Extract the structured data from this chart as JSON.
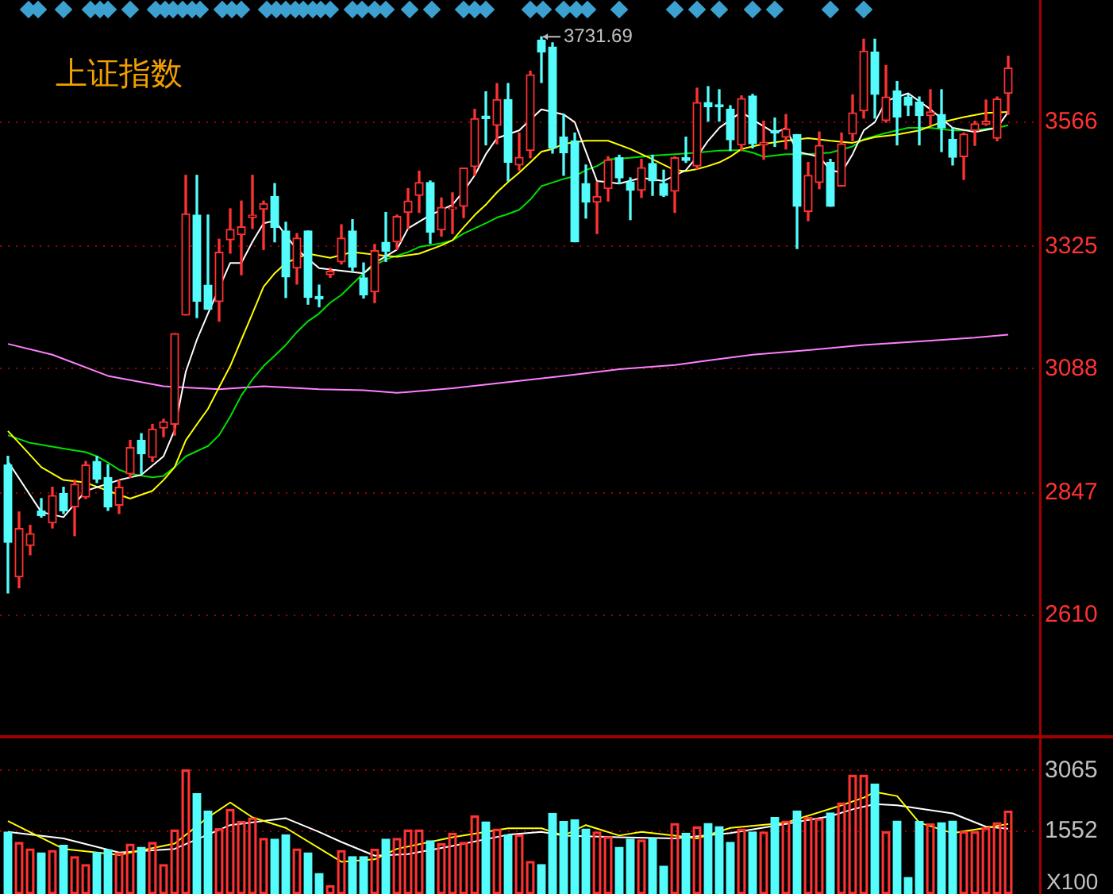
{
  "chart_data": [
    {
      "type": "candlestick",
      "title": "上证指数",
      "categories": [
        null,
        null,
        null,
        null,
        null,
        null,
        null,
        null,
        null,
        null,
        null,
        null,
        null,
        null,
        null,
        null,
        null,
        null,
        null,
        null,
        null,
        null,
        null,
        null,
        null,
        null,
        null,
        null,
        null,
        null,
        null,
        null,
        null,
        null,
        null,
        null,
        null,
        null,
        null,
        null,
        null,
        null,
        null,
        null,
        null,
        null,
        null,
        null,
        null,
        null,
        null,
        null,
        null,
        null,
        null,
        null,
        null,
        null,
        null,
        null,
        null,
        null,
        null,
        null,
        null,
        null,
        null,
        null,
        null,
        null,
        null,
        null,
        null,
        null,
        null,
        null,
        null,
        null,
        null,
        null,
        null,
        null,
        null,
        null,
        null,
        null,
        null,
        null,
        null,
        null,
        null
      ],
      "ohlc": [
        [
          2901,
          2918,
          2653,
          2751
        ],
        [
          2684,
          2810,
          2663,
          2778
        ],
        [
          2745,
          2784,
          2727,
          2768
        ],
        [
          2812,
          2836,
          2800,
          2803
        ],
        [
          2789,
          2858,
          2779,
          2842
        ],
        [
          2846,
          2858,
          2807,
          2812
        ],
        [
          2820,
          2872,
          2764,
          2864
        ],
        [
          2839,
          2908,
          2836,
          2901
        ],
        [
          2908,
          2918,
          2867,
          2874
        ],
        [
          2877,
          2902,
          2813,
          2820
        ],
        [
          2823,
          2872,
          2807,
          2858
        ],
        [
          2884,
          2949,
          2877,
          2935
        ],
        [
          2949,
          2962,
          2884,
          2923
        ],
        [
          2916,
          2980,
          2908,
          2971
        ],
        [
          2973,
          2990,
          2956,
          2985
        ],
        [
          2980,
          3156,
          2959,
          3156
        ],
        [
          3192,
          3463,
          3192,
          3388
        ],
        [
          3386,
          3463,
          3187,
          3219
        ],
        [
          3250,
          3386,
          3203,
          3203
        ],
        [
          3218,
          3339,
          3180,
          3314
        ],
        [
          3338,
          3398,
          3312,
          3358
        ],
        [
          3348,
          3413,
          3270,
          3363
        ],
        [
          3381,
          3463,
          3360,
          3386
        ],
        [
          3397,
          3413,
          3319,
          3408
        ],
        [
          3422,
          3447,
          3334,
          3362
        ],
        [
          3355,
          3372,
          3226,
          3266
        ],
        [
          3283,
          3350,
          3252,
          3341
        ],
        [
          3355,
          3355,
          3213,
          3226
        ],
        [
          3228,
          3250,
          3208,
          3223
        ],
        [
          3270,
          3283,
          3265,
          3277
        ],
        [
          3295,
          3367,
          3291,
          3341
        ],
        [
          3355,
          3377,
          3278,
          3285
        ],
        [
          3264,
          3293,
          3225,
          3231
        ],
        [
          3237,
          3329,
          3216,
          3317
        ],
        [
          3333,
          3391,
          3296,
          3316
        ],
        [
          3334,
          3386,
          3319,
          3383
        ],
        [
          3391,
          3437,
          3360,
          3413
        ],
        [
          3424,
          3471,
          3391,
          3449
        ],
        [
          3449,
          3452,
          3331,
          3353
        ],
        [
          3357,
          3419,
          3345,
          3401
        ],
        [
          3398,
          3429,
          3350,
          3401
        ],
        [
          3403,
          3477,
          3381,
          3477
        ],
        [
          3480,
          3591,
          3463,
          3573
        ],
        [
          3578,
          3625,
          3522,
          3573
        ],
        [
          3560,
          3641,
          3524,
          3610
        ],
        [
          3610,
          3641,
          3452,
          3488
        ],
        [
          3483,
          3545,
          3473,
          3498
        ],
        [
          3511,
          3665,
          3497,
          3658
        ],
        [
          3725,
          3731.69,
          3643,
          3702
        ],
        [
          3712,
          3720,
          3506,
          3516
        ],
        [
          3537,
          3581,
          3463,
          3507
        ],
        [
          3530,
          3545,
          3334,
          3334
        ],
        [
          3447,
          3483,
          3380,
          3411
        ],
        [
          3411,
          3450,
          3350,
          3422
        ],
        [
          3437,
          3499,
          3413,
          3493
        ],
        [
          3497,
          3502,
          3447,
          3458
        ],
        [
          3450,
          3458,
          3377,
          3434
        ],
        [
          3434,
          3494,
          3420,
          3478
        ],
        [
          3486,
          3502,
          3424,
          3452
        ],
        [
          3447,
          3473,
          3422,
          3424
        ],
        [
          3432,
          3499,
          3391,
          3497
        ],
        [
          3497,
          3537,
          3488,
          3492
        ],
        [
          3481,
          3632,
          3475,
          3604
        ],
        [
          3604,
          3635,
          3568,
          3596
        ],
        [
          3600,
          3629,
          3568,
          3596
        ],
        [
          3591,
          3598,
          3511,
          3532
        ],
        [
          3522,
          3617,
          3511,
          3612
        ],
        [
          3617,
          3620,
          3516,
          3524
        ],
        [
          3522,
          3568,
          3494,
          3527
        ],
        [
          3550,
          3574,
          3519,
          3545
        ],
        [
          3537,
          3581,
          3514,
          3553
        ],
        [
          3542,
          3542,
          3321,
          3403
        ],
        [
          3393,
          3488,
          3375,
          3463
        ],
        [
          3449,
          3547,
          3437,
          3521
        ],
        [
          3488,
          3494,
          3403,
          3403
        ],
        [
          3442,
          3545,
          3442,
          3524
        ],
        [
          3543,
          3619,
          3530,
          3584
        ],
        [
          3588,
          3727,
          3574,
          3704
        ],
        [
          3702,
          3727,
          3574,
          3620
        ],
        [
          3569,
          3676,
          3566,
          3615
        ],
        [
          3627,
          3645,
          3522,
          3576
        ],
        [
          3615,
          3619,
          3579,
          3599
        ],
        [
          3605,
          3615,
          3522,
          3579
        ],
        [
          3579,
          3629,
          3560,
          3586
        ],
        [
          3581,
          3629,
          3509,
          3555
        ],
        [
          3533,
          3555,
          3483,
          3498
        ],
        [
          3499,
          3545,
          3455,
          3543
        ],
        [
          3550,
          3568,
          3521,
          3563
        ],
        [
          3562,
          3609,
          3560,
          3568
        ],
        [
          3535,
          3615,
          3530,
          3611
        ],
        [
          3622,
          3694,
          3581,
          3671
        ]
      ],
      "colors": [
        "#54fcfc",
        "#ff3232",
        "#ff3232",
        "#54fcfc",
        "#ff3232",
        "#54fcfc",
        "#ff3232",
        "#ff3232",
        "#54fcfc",
        "#54fcfc",
        "#ff3232",
        "#ff3232",
        "#54fcfc",
        "#ff3232",
        "#ff3232",
        "#ff3232",
        "#ff3232",
        "#54fcfc",
        "#54fcfc",
        "#ff3232",
        "#ff3232",
        "#ff3232",
        "#ff3232",
        "#ff3232",
        "#54fcfc",
        "#54fcfc",
        "#ff3232",
        "#54fcfc",
        "#54fcfc",
        "#ff3232",
        "#ff3232",
        "#54fcfc",
        "#54fcfc",
        "#ff3232",
        "#54fcfc",
        "#ff3232",
        "#ff3232",
        "#ff3232",
        "#54fcfc",
        "#ff3232",
        "#ff3232",
        "#ff3232",
        "#ff3232",
        "#54fcfc",
        "#ff3232",
        "#54fcfc",
        "#ff3232",
        "#ff3232",
        "#54fcfc",
        "#54fcfc",
        "#54fcfc",
        "#54fcfc",
        "#54fcfc",
        "#ff3232",
        "#ff3232",
        "#54fcfc",
        "#54fcfc",
        "#ff3232",
        "#54fcfc",
        "#54fcfc",
        "#ff3232",
        "#54fcfc",
        "#ff3232",
        "#54fcfc",
        "#54fcfc",
        "#54fcfc",
        "#ff3232",
        "#54fcfc",
        "#ff3232",
        "#54fcfc",
        "#ff3232",
        "#54fcfc",
        "#ff3232",
        "#ff3232",
        "#54fcfc",
        "#ff3232",
        "#ff3232",
        "#ff3232",
        "#54fcfc",
        "#ff3232",
        "#54fcfc",
        "#54fcfc",
        "#54fcfc",
        "#ff3232",
        "#54fcfc",
        "#54fcfc",
        "#ff3232",
        "#ff3232",
        "#ff3232",
        "#ff3232",
        "#ff3232"
      ],
      "series": [
        {
          "type": "line",
          "color": "#ffffff",
          "values": [
            2908,
            null,
            null,
            2810,
            null,
            2800,
            null,
            2851,
            null,
            null,
            2872,
            null,
            2882,
            null,
            2918,
            2969,
            3082,
            3144,
            3195,
            null,
            3293,
            3293,
            3334,
            3370,
            3375,
            null,
            3319,
            null,
            3283,
            null,
            3278,
            null,
            3273,
            3293,
            null,
            3319,
            3360,
            null,
            3386,
            null,
            3406,
            3432,
            3463,
            3504,
            3535,
            null,
            3550,
            3571,
            3591,
            null,
            3581,
            3566,
            3509,
            3452,
            null,
            3447,
            null,
            3458,
            null,
            3452,
            null,
            3473,
            3499,
            3530,
            3555,
            null,
            3586,
            3571,
            null,
            3545,
            3555,
            3509,
            null,
            3499,
            3473,
            3468,
            3504,
            3550,
            3566,
            3607,
            null,
            3622,
            null,
            3591,
            null,
            3555,
            null,
            3547,
            null,
            3555,
            3586
          ]
        },
        {
          "type": "line",
          "color": "#ffff00",
          "values": [
            2967,
            2944,
            null,
            2897,
            null,
            2872,
            null,
            2867,
            null,
            2851,
            null,
            2836,
            null,
            2851,
            2872,
            2897,
            2949,
            2980,
            3010,
            3052,
            3093,
            3144,
            3195,
            3247,
            3273,
            3293,
            null,
            3311,
            null,
            3303,
            null,
            3314,
            null,
            3309,
            null,
            3305,
            null,
            3311,
            null,
            3327,
            3337,
            3362,
            3386,
            3406,
            3430,
            3450,
            3468,
            3488,
            3509,
            3514,
            3524,
            null,
            3530,
            null,
            3530,
            null,
            3514,
            null,
            3494,
            null,
            3473,
            3471,
            3475,
            3481,
            3488,
            3499,
            3514,
            null,
            3524,
            null,
            3530,
            null,
            3535,
            null,
            3530,
            null,
            3526,
            null,
            3537,
            null,
            3542,
            null,
            3550,
            null,
            3566,
            null,
            3576,
            null,
            3584,
            null,
            3586
          ]
        },
        {
          "type": "line",
          "color": "#00e000",
          "values": [
            2959,
            null,
            2944,
            null,
            null,
            2933,
            null,
            2926,
            2918,
            2906,
            2892,
            2884,
            null,
            2877,
            2880,
            2897,
            2918,
            2928,
            2938,
            2959,
            2995,
            3036,
            3067,
            3093,
            3113,
            3134,
            3159,
            3180,
            3195,
            3216,
            3231,
            3252,
            3273,
            3288,
            3300,
            3307,
            3314,
            3324,
            null,
            3331,
            3337,
            3350,
            3360,
            3370,
            3381,
            3388,
            3396,
            3416,
            3442,
            3449,
            3456,
            3461,
            3473,
            3481,
            3494,
            null,
            3497,
            null,
            3501,
            null,
            3504,
            null,
            3507,
            null,
            3511,
            null,
            3512,
            3507,
            3499,
            null,
            3504,
            null,
            3504,
            null,
            3507,
            null,
            3519,
            3533,
            null,
            3545,
            3550,
            3555,
            null,
            3555,
            null,
            3550,
            null,
            3550,
            3553,
            3555,
            3560
          ]
        },
        {
          "type": "line",
          "color": "#ff80ff",
          "values": [
            3136,
            null,
            null,
            null,
            3115,
            null,
            null,
            null,
            null,
            3074,
            null,
            null,
            null,
            null,
            3054,
            null,
            null,
            null,
            null,
            3048,
            null,
            null,
            null,
            3054,
            null,
            null,
            null,
            null,
            3048,
            null,
            null,
            null,
            3046,
            null,
            null,
            3041,
            null,
            null,
            null,
            null,
            3050,
            null,
            null,
            null,
            null,
            3062,
            null,
            null,
            null,
            null,
            3074,
            null,
            null,
            null,
            null,
            3087,
            null,
            null,
            null,
            null,
            3095,
            null,
            null,
            3104,
            null,
            null,
            null,
            3115,
            null,
            null,
            null,
            null,
            3124,
            null,
            null,
            null,
            null,
            3134,
            null,
            null,
            null,
            null,
            3141,
            null,
            null,
            null,
            null,
            3148,
            null,
            null,
            3154
          ]
        }
      ],
      "ylim": [
        2374,
        3803
      ],
      "yticks": [
        2610,
        2847,
        3088,
        3325,
        3566
      ],
      "grid": "y",
      "tick_labels": "y",
      "annotations": [
        "3731.69"
      ]
    },
    {
      "type": "bar",
      "ylabel": "X100",
      "categories": [
        null,
        null,
        null,
        null,
        null,
        null,
        null,
        null,
        null,
        null,
        null,
        null,
        null,
        null,
        null,
        null,
        null,
        null,
        null,
        null,
        null,
        null,
        null,
        null,
        null,
        null,
        null,
        null,
        null,
        null,
        null,
        null,
        null,
        null,
        null,
        null,
        null,
        null,
        null,
        null,
        null,
        null,
        null,
        null,
        null,
        null,
        null,
        null,
        null,
        null,
        null,
        null,
        null,
        null,
        null,
        null,
        null,
        null,
        null,
        null,
        null,
        null,
        null,
        null,
        null,
        null,
        null,
        null,
        null,
        null,
        null,
        null,
        null,
        null,
        null,
        null,
        null,
        null,
        null,
        null,
        null,
        null,
        null,
        null,
        null,
        null,
        null,
        null,
        null,
        null,
        null
      ],
      "series": [
        {
          "type": "bar",
          "values": [
            1540,
            1280,
            1120,
            1020,
            1080,
            1210,
            930,
            730,
            1030,
            1100,
            1020,
            1240,
            1160,
            1280,
            730,
            1590,
            3080,
            2490,
            2060,
            1620,
            2100,
            1800,
            1890,
            1380,
            1360,
            1470,
            1120,
            1020,
            510,
            210,
            1080,
            930,
            930,
            1110,
            1360,
            1380,
            1590,
            1590,
            1320,
            1250,
            1510,
            1280,
            1940,
            1790,
            1610,
            1470,
            1470,
            810,
            730,
            2000,
            1800,
            1840,
            1610,
            1540,
            1420,
            1160,
            1360,
            1340,
            1380,
            690,
            1750,
            1510,
            1670,
            1750,
            1670,
            1280,
            1610,
            1540,
            1540,
            1900,
            1810,
            2060,
            1900,
            1870,
            2010,
            2260,
            2950,
            2950,
            2730,
            1550,
            1810,
            410,
            1800,
            1740,
            1770,
            1810,
            1550,
            1550,
            1640,
            1770,
            2060
          ],
          "colors": [
            "#54fcfc",
            "#ff3232",
            "#ff3232",
            "#54fcfc",
            "#ff3232",
            "#54fcfc",
            "#ff3232",
            "#ff3232",
            "#54fcfc",
            "#54fcfc",
            "#ff3232",
            "#ff3232",
            "#54fcfc",
            "#ff3232",
            "#ff3232",
            "#ff3232",
            "#ff3232",
            "#54fcfc",
            "#54fcfc",
            "#ff3232",
            "#ff3232",
            "#ff3232",
            "#ff3232",
            "#ff3232",
            "#54fcfc",
            "#54fcfc",
            "#ff3232",
            "#54fcfc",
            "#54fcfc",
            "#ff3232",
            "#ff3232",
            "#54fcfc",
            "#54fcfc",
            "#ff3232",
            "#54fcfc",
            "#ff3232",
            "#ff3232",
            "#ff3232",
            "#54fcfc",
            "#ff3232",
            "#ff3232",
            "#ff3232",
            "#ff3232",
            "#54fcfc",
            "#ff3232",
            "#54fcfc",
            "#ff3232",
            "#ff3232",
            "#54fcfc",
            "#54fcfc",
            "#54fcfc",
            "#54fcfc",
            "#54fcfc",
            "#ff3232",
            "#ff3232",
            "#54fcfc",
            "#54fcfc",
            "#ff3232",
            "#54fcfc",
            "#54fcfc",
            "#ff3232",
            "#54fcfc",
            "#ff3232",
            "#54fcfc",
            "#54fcfc",
            "#54fcfc",
            "#ff3232",
            "#54fcfc",
            "#ff3232",
            "#54fcfc",
            "#ff3232",
            "#54fcfc",
            "#ff3232",
            "#ff3232",
            "#54fcfc",
            "#ff3232",
            "#ff3232",
            "#ff3232",
            "#54fcfc",
            "#ff3232",
            "#54fcfc",
            "#54fcfc",
            "#54fcfc",
            "#ff3232",
            "#54fcfc",
            "#54fcfc",
            "#ff3232",
            "#ff3232",
            "#ff3232",
            "#ff3232",
            "#ff3232"
          ]
        },
        {
          "type": "line",
          "color": "#ffff00",
          "values": [
            1810,
            null,
            null,
            null,
            null,
            1120,
            null,
            null,
            null,
            null,
            970,
            null,
            null,
            null,
            null,
            1250,
            null,
            null,
            1900,
            null,
            2270,
            null,
            1900,
            null,
            null,
            1640,
            null,
            null,
            null,
            null,
            800,
            null,
            null,
            860,
            null,
            1120,
            null,
            null,
            null,
            null,
            1410,
            null,
            null,
            null,
            null,
            1630,
            null,
            null,
            1630,
            null,
            1450,
            null,
            1710,
            null,
            null,
            1450,
            null,
            1540,
            null,
            null,
            1450,
            null,
            1380,
            null,
            null,
            1640,
            null,
            null,
            null,
            null,
            1770,
            null,
            null,
            null,
            null,
            2200,
            null,
            2390,
            2530,
            null,
            2430,
            null,
            1770,
            null,
            null,
            1510,
            null,
            null,
            1640,
            null,
            1740
          ]
        },
        {
          "type": "line",
          "color": "#ffffff",
          "values": [
            1540,
            null,
            null,
            null,
            null,
            1380,
            null,
            null,
            null,
            null,
            1030,
            null,
            null,
            null,
            null,
            1120,
            null,
            null,
            null,
            null,
            1710,
            null,
            null,
            null,
            null,
            1880,
            null,
            null,
            1540,
            null,
            1290,
            null,
            null,
            950,
            null,
            null,
            990,
            null,
            null,
            null,
            1190,
            null,
            null,
            null,
            null,
            1470,
            null,
            null,
            1540,
            null,
            1450,
            null,
            null,
            null,
            null,
            1410,
            null,
            null,
            null,
            null,
            1380,
            null,
            null,
            null,
            null,
            1510,
            null,
            null,
            null,
            null,
            1740,
            null,
            null,
            null,
            1930,
            null,
            2100,
            null,
            2230,
            null,
            2200,
            null,
            null,
            null,
            null,
            2000,
            null,
            null,
            1670,
            null,
            1620
          ]
        }
      ],
      "ylim": [
        0,
        3900
      ],
      "yticks": [
        1552,
        3065
      ],
      "grid": "y",
      "tick_labels": "y"
    }
  ]
}
